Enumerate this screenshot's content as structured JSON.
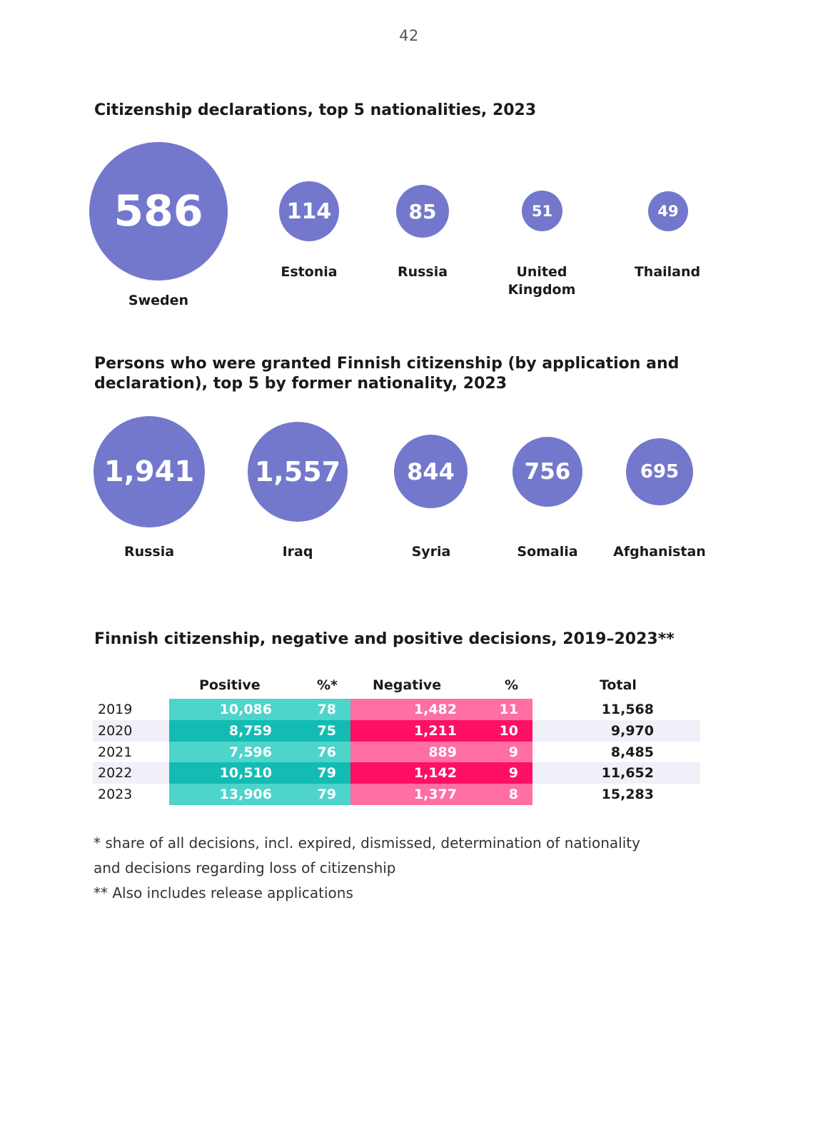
{
  "page_number": "42",
  "section1": {
    "title": "Citizenship declarations, top 5 nationalities, 2023",
    "items": [
      {
        "country": "Sweden",
        "value": "586"
      },
      {
        "country": "Estonia",
        "value": "114"
      },
      {
        "country": "Russia",
        "value": "85"
      },
      {
        "country": "United Kingdom",
        "value": "51"
      },
      {
        "country": "Thailand",
        "value": "49"
      }
    ]
  },
  "section2": {
    "title_line1": "Persons who were granted Finnish citizenship (by application and",
    "title_line2": "declaration), top 5 by former nationality, 2023",
    "items": [
      {
        "country": "Russia",
        "value": "1,941"
      },
      {
        "country": "Iraq",
        "value": "1,557"
      },
      {
        "country": "Syria",
        "value": "844"
      },
      {
        "country": "Somalia",
        "value": "756"
      },
      {
        "country": "Afghanistan",
        "value": "695"
      }
    ]
  },
  "section3": {
    "title": "Finnish citizenship, negative and positive decisions, 2019–2023**",
    "headers": {
      "positive": "Positive",
      "positive_pct": "%*",
      "negative": "Negative",
      "negative_pct": "%",
      "total": "Total"
    },
    "rows": [
      {
        "year": "2019",
        "positive": "10,086",
        "positive_pct": "78",
        "negative": "1,482",
        "negative_pct": "11",
        "total": "11,568"
      },
      {
        "year": "2020",
        "positive": "8,759",
        "positive_pct": "75",
        "negative": "1,211",
        "negative_pct": "10",
        "total": "9,970"
      },
      {
        "year": "2021",
        "positive": "7,596",
        "positive_pct": "76",
        "negative": "889",
        "negative_pct": "9",
        "total": "8,485"
      },
      {
        "year": "2022",
        "positive": "10,510",
        "positive_pct": "79",
        "negative": "1,142",
        "negative_pct": "9",
        "total": "11,652"
      },
      {
        "year": "2023",
        "positive": "13,906",
        "positive_pct": "79",
        "negative": "1,377",
        "negative_pct": "8",
        "total": "15,283"
      }
    ]
  },
  "footnotes": {
    "line1": "* share of all decisions, incl. expired, dismissed, determination of nationality",
    "line2": "and decisions regarding loss of citizenship",
    "line3": "** Also includes release applications"
  },
  "colors": {
    "bubble": "#7378cc",
    "positive_light": "#4dd4cb",
    "positive_dark": "#13bcb3",
    "negative_light": "#ff6fa3",
    "negative_dark": "#ff0f64"
  }
}
